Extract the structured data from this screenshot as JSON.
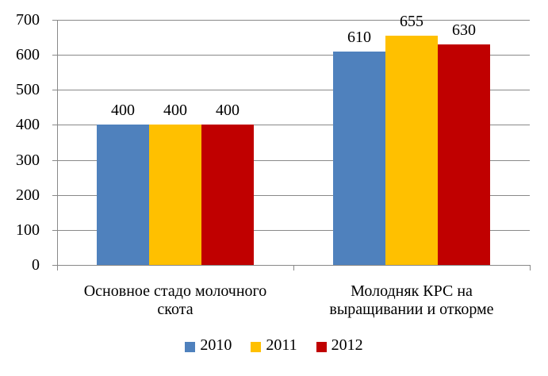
{
  "chart_data": {
    "type": "bar",
    "title": "",
    "xlabel": "",
    "ylabel": "",
    "grid": true,
    "data_labels": true,
    "legend_position": "bottom",
    "categories": [
      {
        "label": "Основное стадо молочного скота",
        "lines": [
          "Основное стадо молочного",
          "скота"
        ]
      },
      {
        "label": "Молодняк КРС на выращивании и откорме",
        "lines": [
          "Молодняк КРС на",
          "выращивании и откорме"
        ]
      }
    ],
    "series": [
      {
        "name": "2010",
        "color": "#4F81BD",
        "values": [
          400,
          610
        ]
      },
      {
        "name": "2011",
        "color": "#FFC000",
        "values": [
          400,
          655
        ]
      },
      {
        "name": "2012",
        "color": "#C00000",
        "values": [
          400,
          630
        ]
      }
    ],
    "y_axis": {
      "min": 0,
      "max": 700,
      "step": 100,
      "ticks": [
        "0",
        "100",
        "200",
        "300",
        "400",
        "500",
        "600",
        "700"
      ]
    },
    "colors": {
      "gridline": "#898989",
      "axis": "#898989",
      "text": "#000000",
      "background": "#FFFFFF"
    }
  }
}
